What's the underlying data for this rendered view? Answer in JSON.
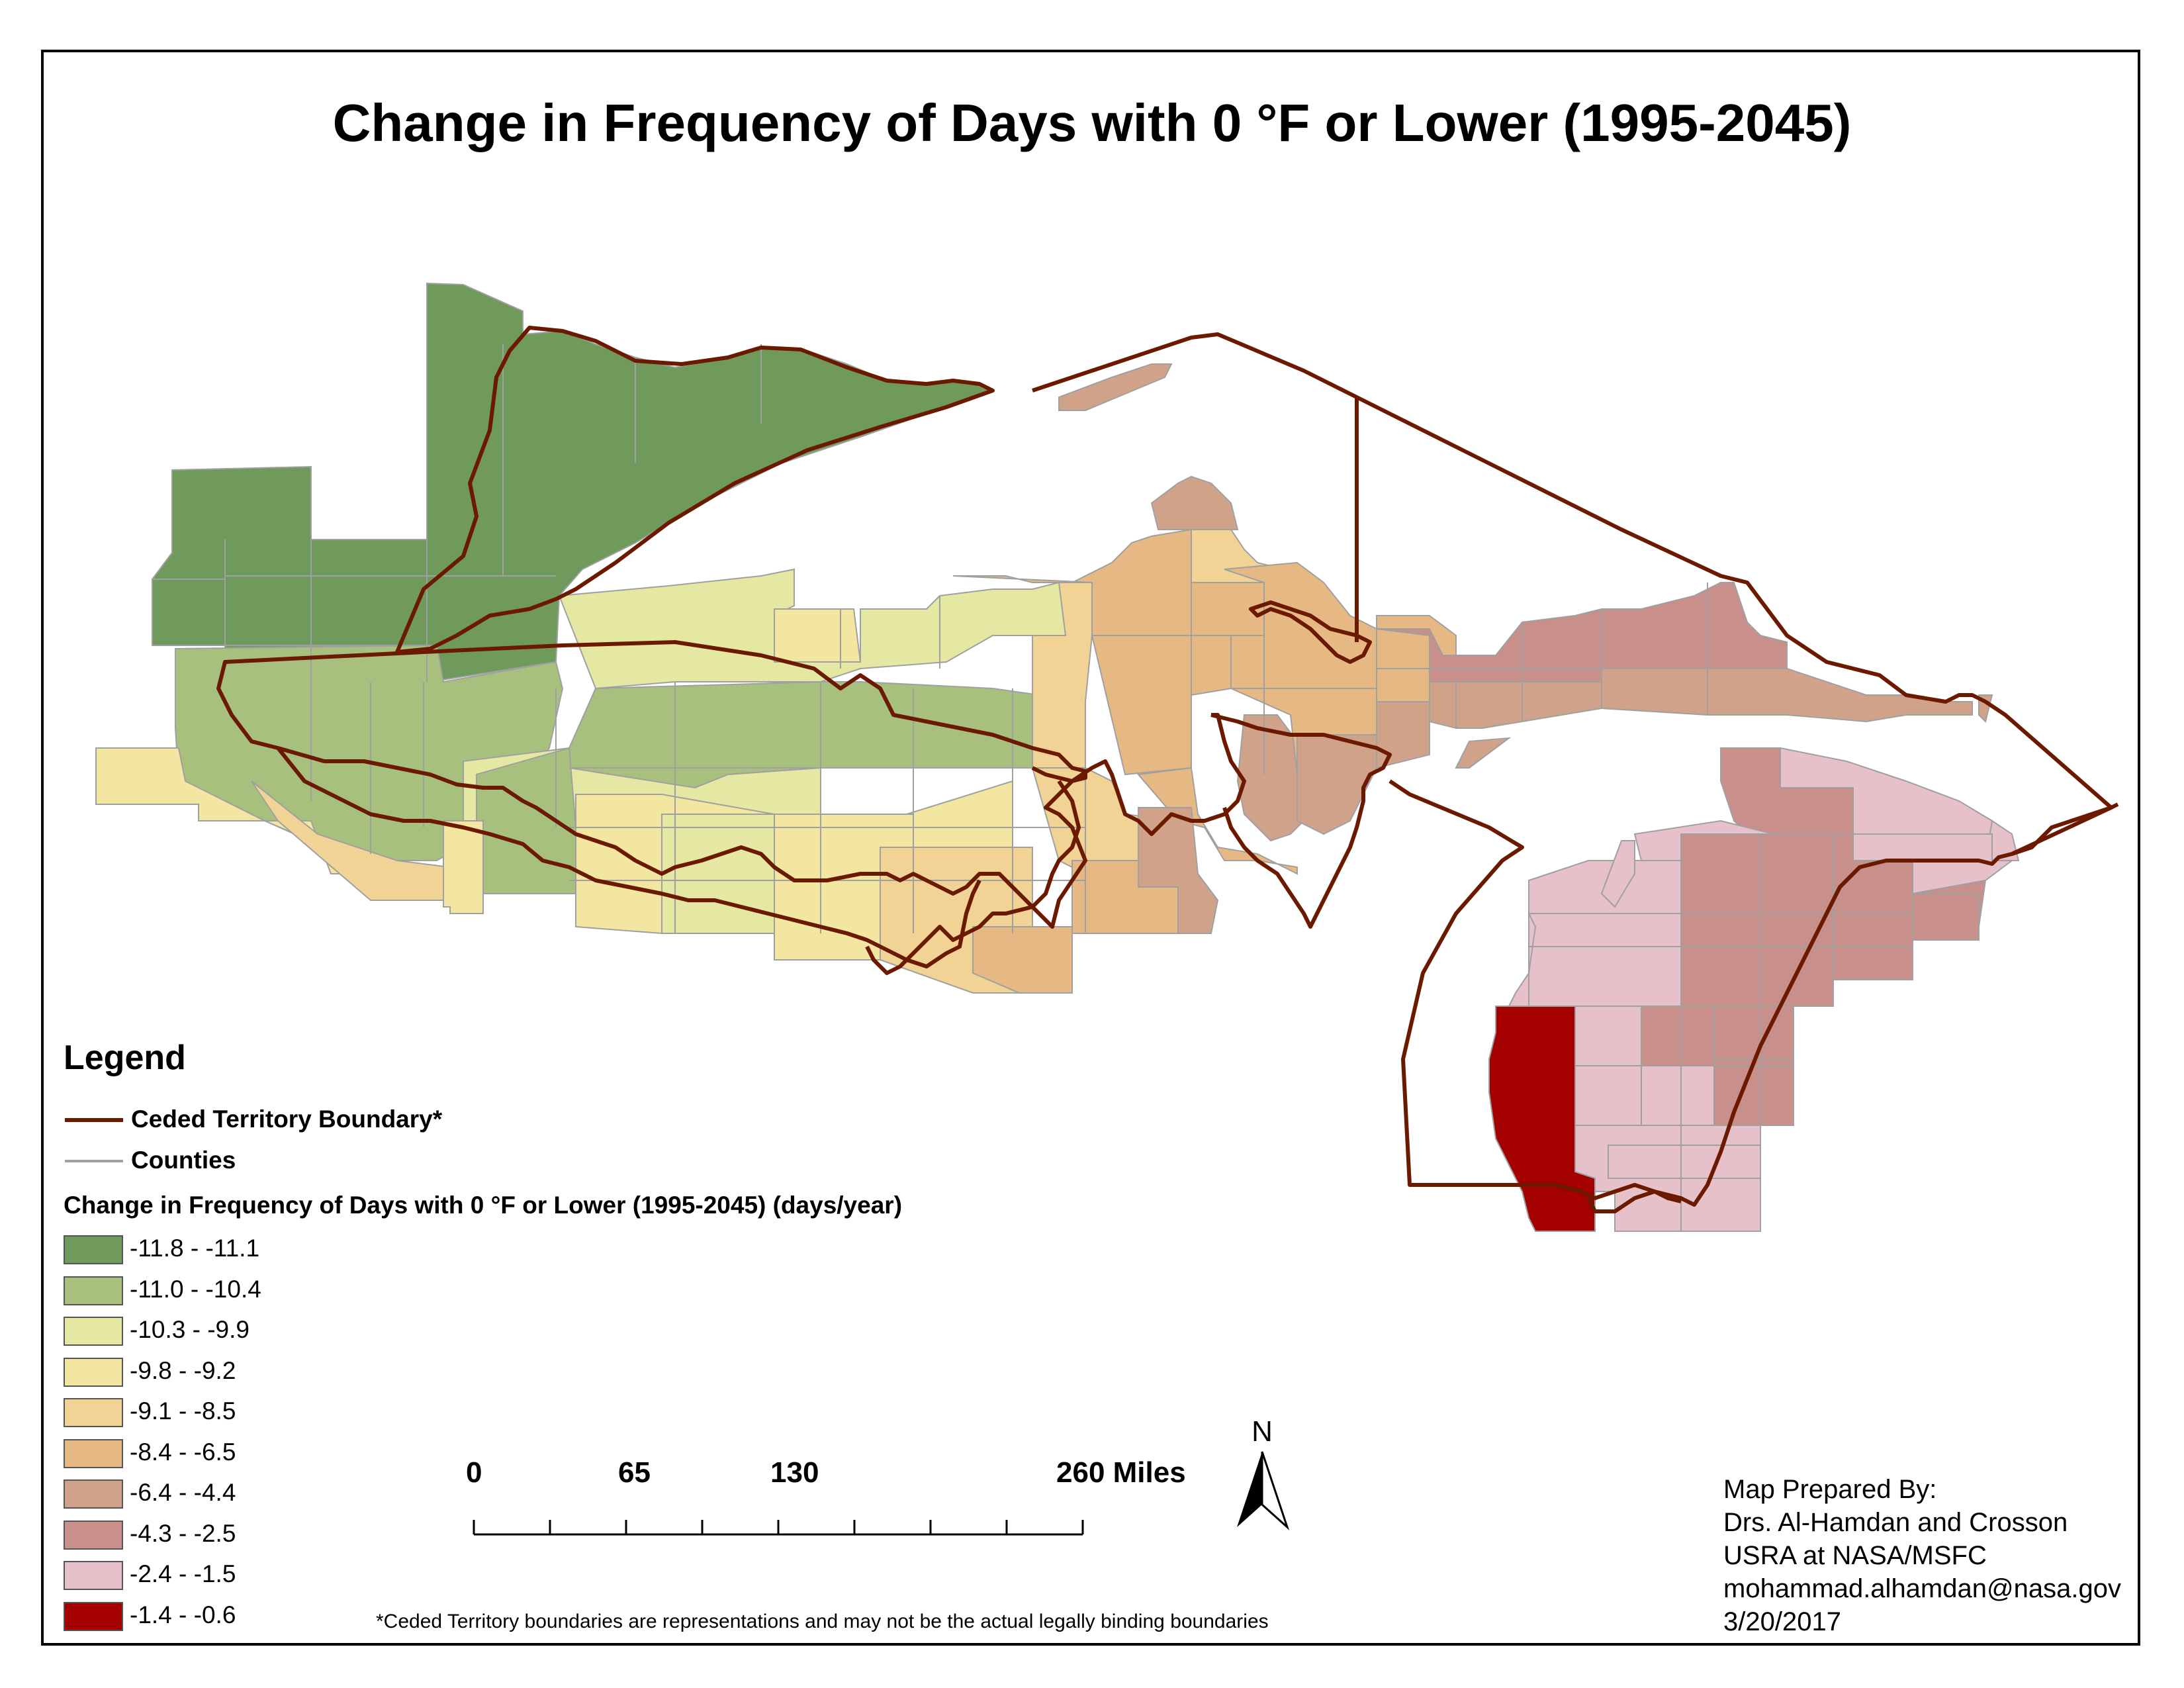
{
  "title": "Change in Frequency of Days with 0 °F or Lower (1995-2045)",
  "legend": {
    "heading": "Legend",
    "boundary_label": "Ceded Territory Boundary*",
    "counties_label": "Counties",
    "classes_title": "Change in Frequency of Days with 0 °F or Lower (1995-2045) (days/year)",
    "classes": [
      {
        "label": "-11.8 - -11.1",
        "color": "#6f9a5c"
      },
      {
        "label": "-11.0 - -10.4",
        "color": "#a8c07e"
      },
      {
        "label": "-10.3 - -9.9",
        "color": "#e5e8a2"
      },
      {
        "label": "-9.8 - -9.2",
        "color": "#f3e6a1"
      },
      {
        "label": "-9.1 - -8.5",
        "color": "#f1d495"
      },
      {
        "label": "-8.4 - -6.5",
        "color": "#e6b883"
      },
      {
        "label": "-6.4 - -4.4",
        "color": "#d1a28a"
      },
      {
        "label": "-4.3 - -2.5",
        "color": "#c98f8b"
      },
      {
        "label": "-2.4 - -1.5",
        "color": "#e7c1ca"
      },
      {
        "label": "-1.4 - -0.6",
        "color": "#a50000"
      }
    ]
  },
  "colors": {
    "boundary": "#6b1a00",
    "counties": "#a0a0a0"
  },
  "scale_bar": {
    "labels": [
      "0",
      "65",
      "130",
      "260 Miles"
    ],
    "values": [
      0,
      65,
      130,
      260
    ]
  },
  "north_arrow": {
    "label": "N",
    "icon": "north-arrow-icon"
  },
  "credits": [
    "Map Prepared By:",
    "Drs. Al-Hamdan and Crosson",
    "USRA at NASA/MSFC",
    "mohammad.alhamdan@nasa.gov",
    "3/20/2017"
  ],
  "footnote": "*Ceded Territory boundaries are representations and may not be the actual legally binding boundaries"
}
